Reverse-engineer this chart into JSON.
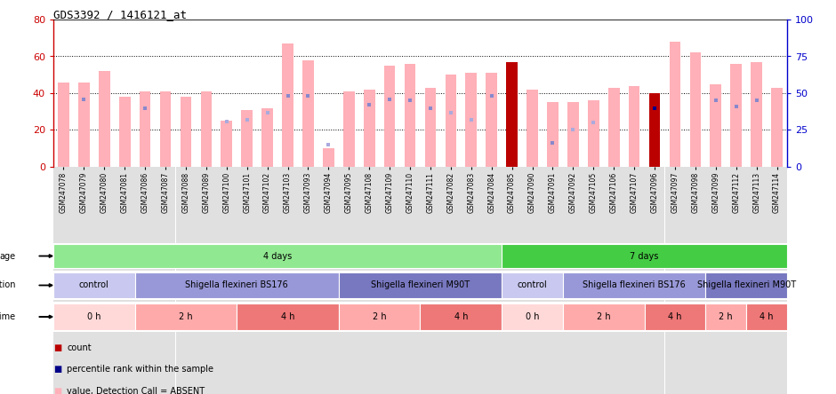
{
  "title": "GDS3392 / 1416121_at",
  "samples": [
    "GSM247078",
    "GSM247079",
    "GSM247080",
    "GSM247081",
    "GSM247086",
    "GSM247087",
    "GSM247088",
    "GSM247089",
    "GSM247100",
    "GSM247101",
    "GSM247102",
    "GSM247103",
    "GSM247093",
    "GSM247094",
    "GSM247095",
    "GSM247108",
    "GSM247109",
    "GSM247110",
    "GSM247111",
    "GSM247082",
    "GSM247083",
    "GSM247084",
    "GSM247085",
    "GSM247090",
    "GSM247091",
    "GSM247092",
    "GSM247105",
    "GSM247106",
    "GSM247107",
    "GSM247096",
    "GSM247097",
    "GSM247098",
    "GSM247099",
    "GSM247112",
    "GSM247113",
    "GSM247114"
  ],
  "bar_values": [
    46,
    46,
    52,
    38,
    41,
    41,
    38,
    41,
    25,
    31,
    32,
    67,
    58,
    10,
    41,
    42,
    55,
    56,
    43,
    50,
    51,
    51,
    57,
    42,
    35,
    35,
    36,
    43,
    44,
    40,
    68,
    62,
    45,
    56,
    57,
    43
  ],
  "rank_values": [
    null,
    46,
    null,
    null,
    40,
    null,
    null,
    null,
    null,
    null,
    null,
    48,
    48,
    null,
    null,
    42,
    46,
    45,
    40,
    null,
    null,
    48,
    null,
    null,
    16,
    null,
    null,
    null,
    null,
    40,
    null,
    null,
    45,
    41,
    45,
    null
  ],
  "absent_rank_values": [
    null,
    null,
    null,
    null,
    null,
    null,
    null,
    null,
    31,
    32,
    37,
    null,
    null,
    15,
    null,
    null,
    null,
    null,
    null,
    37,
    32,
    null,
    null,
    null,
    null,
    25,
    30,
    null,
    null,
    null,
    null,
    null,
    null,
    null,
    null,
    null
  ],
  "highlighted_bars": [
    22,
    29
  ],
  "ylim_left": [
    0,
    80
  ],
  "ylim_right": [
    0,
    100
  ],
  "yticks_left": [
    0,
    20,
    40,
    60,
    80
  ],
  "yticks_right": [
    0,
    25,
    50,
    75,
    100
  ],
  "age_groups": [
    {
      "label": "4 days",
      "start": 0,
      "end": 22,
      "color": "#90e890"
    },
    {
      "label": "7 days",
      "start": 22,
      "end": 36,
      "color": "#44cc44"
    }
  ],
  "infection_groups": [
    {
      "label": "control",
      "start": 0,
      "end": 4,
      "color": "#c8c8f0"
    },
    {
      "label": "Shigella flexineri BS176",
      "start": 4,
      "end": 14,
      "color": "#9898d8"
    },
    {
      "label": "Shigella flexineri M90T",
      "start": 14,
      "end": 22,
      "color": "#7878c0"
    },
    {
      "label": "control",
      "start": 22,
      "end": 25,
      "color": "#c8c8f0"
    },
    {
      "label": "Shigella flexineri BS176",
      "start": 25,
      "end": 32,
      "color": "#9898d8"
    },
    {
      "label": "Shigella flexineri M90T",
      "start": 32,
      "end": 36,
      "color": "#7878c0"
    }
  ],
  "time_groups": [
    {
      "label": "0 h",
      "start": 0,
      "end": 4,
      "color": "#ffd8d8"
    },
    {
      "label": "2 h",
      "start": 4,
      "end": 9,
      "color": "#ffaaaa"
    },
    {
      "label": "4 h",
      "start": 9,
      "end": 14,
      "color": "#ee7777"
    },
    {
      "label": "2 h",
      "start": 14,
      "end": 18,
      "color": "#ffaaaa"
    },
    {
      "label": "4 h",
      "start": 18,
      "end": 22,
      "color": "#ee7777"
    },
    {
      "label": "0 h",
      "start": 22,
      "end": 25,
      "color": "#ffd8d8"
    },
    {
      "label": "2 h",
      "start": 25,
      "end": 29,
      "color": "#ffaaaa"
    },
    {
      "label": "4 h",
      "start": 29,
      "end": 32,
      "color": "#ee7777"
    },
    {
      "label": "2 h",
      "start": 32,
      "end": 34,
      "color": "#ffaaaa"
    },
    {
      "label": "4 h",
      "start": 34,
      "end": 36,
      "color": "#ee7777"
    }
  ],
  "bar_color_normal": "#ffb0b8",
  "bar_color_highlight": "#bb0000",
  "rank_color_normal": "#8888cc",
  "rank_color_highlight": "#000088",
  "absent_rank_color": "#aaaadd",
  "bg_color": "#ffffff",
  "grid_color": "#000000",
  "left_axis_color": "#cc0000",
  "right_axis_color": "#0000cc",
  "xtick_bg": "#e0e0e0",
  "row_label_color": "#000000"
}
